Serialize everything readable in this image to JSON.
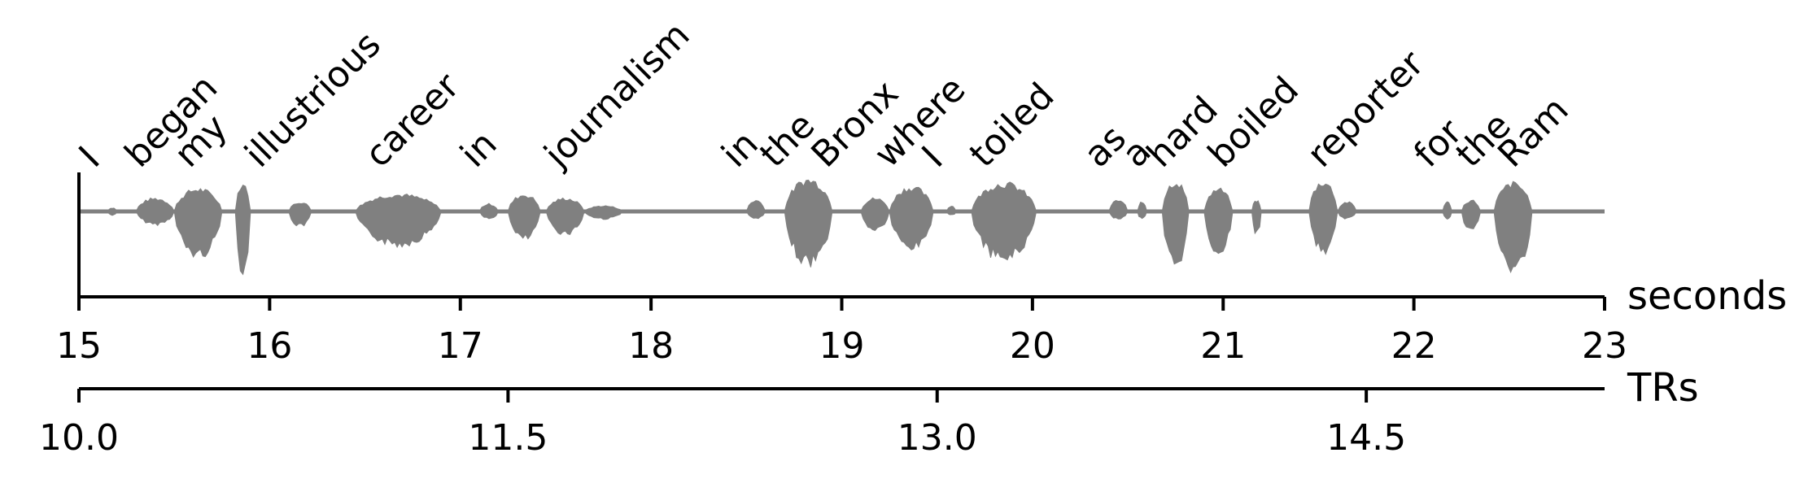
{
  "chart_data": {
    "type": "line",
    "title": "",
    "waveform_color": "#808080",
    "axes_color": "#000000",
    "grid": false,
    "x_axis_seconds": {
      "label": "seconds",
      "range": [
        15,
        23
      ],
      "ticks": [
        15,
        16,
        17,
        18,
        19,
        20,
        21,
        22,
        23
      ],
      "tick_labels": [
        "15",
        "16",
        "17",
        "18",
        "19",
        "20",
        "21",
        "22",
        "23"
      ]
    },
    "x_axis_trs": {
      "label": "TRs",
      "range": [
        10.0,
        15.333
      ],
      "ticks": [
        10.0,
        11.5,
        13.0,
        14.5
      ],
      "tick_labels": [
        "10.0",
        "11.5",
        "13.0",
        "14.5"
      ]
    },
    "words": [
      {
        "text": "I",
        "t": 15.08
      },
      {
        "text": "began",
        "t": 15.32
      },
      {
        "text": "my",
        "t": 15.58
      },
      {
        "text": "illustrious",
        "t": 15.95
      },
      {
        "text": "career",
        "t": 16.58
      },
      {
        "text": "in",
        "t": 17.08
      },
      {
        "text": "journalism",
        "t": 17.52
      },
      {
        "text": "in",
        "t": 18.45
      },
      {
        "text": "the",
        "t": 18.65
      },
      {
        "text": "Bronx",
        "t": 18.92
      },
      {
        "text": "where",
        "t": 19.25
      },
      {
        "text": "I",
        "t": 19.5
      },
      {
        "text": "toiled",
        "t": 19.75
      },
      {
        "text": "as",
        "t": 20.35
      },
      {
        "text": "a",
        "t": 20.55
      },
      {
        "text": "hard",
        "t": 20.68
      },
      {
        "text": "boiled",
        "t": 21.0
      },
      {
        "text": "reporter",
        "t": 21.52
      },
      {
        "text": "for",
        "t": 22.08
      },
      {
        "text": "the",
        "t": 22.3
      },
      {
        "text": "Ram",
        "t": 22.52
      }
    ],
    "waveform_segments": [
      {
        "t0": 15.15,
        "t1": 15.2,
        "up": 0.1,
        "down": 0.1
      },
      {
        "t0": 15.3,
        "t1": 15.5,
        "up": 0.35,
        "down": 0.35
      },
      {
        "t0": 15.5,
        "t1": 15.75,
        "up": 0.6,
        "down": 1.2
      },
      {
        "t0": 15.82,
        "t1": 15.9,
        "up": 0.75,
        "down": 1.6
      },
      {
        "t0": 16.1,
        "t1": 16.22,
        "up": 0.25,
        "down": 0.4
      },
      {
        "t0": 16.45,
        "t1": 16.9,
        "up": 0.45,
        "down": 0.9
      },
      {
        "t0": 17.1,
        "t1": 17.2,
        "up": 0.2,
        "down": 0.2
      },
      {
        "t0": 17.25,
        "t1": 17.42,
        "up": 0.45,
        "down": 0.75
      },
      {
        "t0": 17.45,
        "t1": 17.65,
        "up": 0.35,
        "down": 0.6
      },
      {
        "t0": 17.65,
        "t1": 17.85,
        "up": 0.15,
        "down": 0.2
      },
      {
        "t0": 18.5,
        "t1": 18.6,
        "up": 0.3,
        "down": 0.2
      },
      {
        "t0": 18.7,
        "t1": 18.95,
        "up": 0.85,
        "down": 1.4
      },
      {
        "t0": 19.1,
        "t1": 19.25,
        "up": 0.35,
        "down": 0.5
      },
      {
        "t0": 19.25,
        "t1": 19.48,
        "up": 0.65,
        "down": 1.0
      },
      {
        "t0": 19.55,
        "t1": 19.6,
        "up": 0.15,
        "down": 0.1
      },
      {
        "t0": 19.68,
        "t1": 20.02,
        "up": 0.75,
        "down": 1.3
      },
      {
        "t0": 20.4,
        "t1": 20.5,
        "up": 0.3,
        "down": 0.2
      },
      {
        "t0": 20.55,
        "t1": 20.6,
        "up": 0.25,
        "down": 0.2
      },
      {
        "t0": 20.68,
        "t1": 20.82,
        "up": 0.8,
        "down": 1.45
      },
      {
        "t0": 20.9,
        "t1": 21.05,
        "up": 0.6,
        "down": 1.1
      },
      {
        "t0": 21.15,
        "t1": 21.2,
        "up": 0.3,
        "down": 0.6
      },
      {
        "t0": 21.45,
        "t1": 21.6,
        "up": 0.8,
        "down": 1.1
      },
      {
        "t0": 21.6,
        "t1": 21.7,
        "up": 0.25,
        "down": 0.2
      },
      {
        "t0": 22.15,
        "t1": 22.2,
        "up": 0.25,
        "down": 0.2
      },
      {
        "t0": 22.25,
        "t1": 22.35,
        "up": 0.3,
        "down": 0.5
      },
      {
        "t0": 22.42,
        "t1": 22.62,
        "up": 0.75,
        "down": 1.6
      }
    ]
  }
}
